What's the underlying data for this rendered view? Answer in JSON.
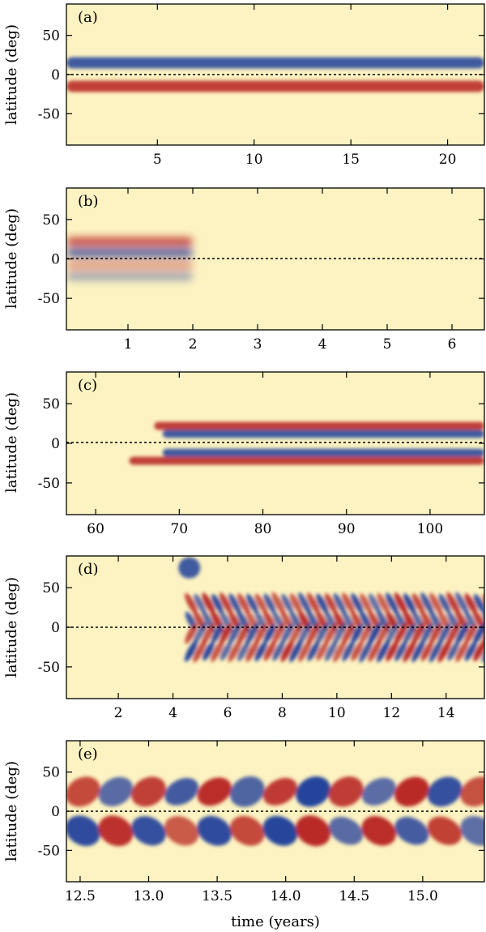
{
  "colors": {
    "background": "#fdf3c2",
    "positive": "#b5201c",
    "negative": "#1f3e9a",
    "axis": "#000000"
  },
  "chart_data": [
    {
      "type": "heatmap",
      "panel_label": "(a)",
      "ylabel": "latitude (deg)",
      "xlabel": "",
      "xlim": [
        0.3,
        21.9
      ],
      "ylim": [
        -90,
        90
      ],
      "xticks": [
        5,
        10,
        15,
        20
      ],
      "yticks": [
        50,
        0,
        -50
      ],
      "equator_line": true,
      "features": [
        {
          "lat": 15,
          "polarity": "negative",
          "width": 10,
          "t_start": 0.3,
          "t_end": 21.9,
          "description": "persistent band"
        },
        {
          "lat": -15,
          "polarity": "positive",
          "width": 10,
          "t_start": 0.3,
          "t_end": 21.9,
          "description": "persistent band"
        }
      ]
    },
    {
      "type": "heatmap",
      "panel_label": "(b)",
      "ylabel": "latitude (deg)",
      "xlabel": "",
      "xlim": [
        0.05,
        6.5
      ],
      "ylim": [
        -90,
        90
      ],
      "xticks": [
        1,
        2,
        3,
        4,
        5,
        6
      ],
      "yticks": [
        50,
        0,
        -50
      ],
      "equator_line": true,
      "features": [
        {
          "lat": 22,
          "polarity": "positive",
          "t_start": 0.05,
          "t_end": 2.0
        },
        {
          "lat": 8,
          "polarity": "negative",
          "t_start": 0.05,
          "t_end": 2.0
        },
        {
          "lat": -8,
          "polarity": "positive",
          "t_start": 0.05,
          "t_end": 2.0
        },
        {
          "lat": -22,
          "polarity": "negative",
          "t_start": 0.05,
          "t_end": 2.0
        }
      ]
    },
    {
      "type": "heatmap",
      "panel_label": "(c)",
      "ylabel": "latitude (deg)",
      "xlabel": "",
      "xlim": [
        56.5,
        106.5
      ],
      "ylim": [
        -90,
        90
      ],
      "xticks": [
        60,
        70,
        80,
        90,
        100
      ],
      "yticks": [
        50,
        0,
        -50
      ],
      "equator_line": true,
      "features": [
        {
          "lat": 22,
          "polarity": "positive",
          "t_start": 67,
          "t_end": 106.5
        },
        {
          "lat": 12,
          "polarity": "negative",
          "t_start": 68,
          "t_end": 106.5
        },
        {
          "lat": -12,
          "polarity": "negative",
          "t_start": 68,
          "t_end": 106.5
        },
        {
          "lat": -22,
          "polarity": "positive",
          "t_start": 64,
          "t_end": 106.5
        }
      ]
    },
    {
      "type": "heatmap",
      "panel_label": "(d)",
      "ylabel": "latitude (deg)",
      "xlabel": "",
      "xlim": [
        0.1,
        15.4
      ],
      "ylim": [
        -90,
        90
      ],
      "xticks": [
        2,
        4,
        6,
        8,
        10,
        12,
        14
      ],
      "yticks": [
        50,
        0,
        -50
      ],
      "equator_line": true,
      "features": [
        {
          "lat": 30,
          "polarity": "alternating",
          "period": 0.32,
          "t_start": 4.5,
          "t_end": 15.4
        },
        {
          "lat": -30,
          "polarity": "alternating",
          "period": 0.32,
          "t_start": 4.5,
          "t_end": 15.4
        },
        {
          "lat": 75,
          "polarity": "negative",
          "t_start": 4.2,
          "t_end": 5.0
        }
      ]
    },
    {
      "type": "heatmap",
      "panel_label": "(e)",
      "ylabel": "latitude (deg)",
      "xlabel": "time (years)",
      "xlim": [
        12.4,
        15.45
      ],
      "ylim": [
        -90,
        90
      ],
      "xticks": [
        12.5,
        13.0,
        13.5,
        14.0,
        14.5,
        15.0
      ],
      "yticks": [
        50,
        0,
        -50
      ],
      "equator_line": true,
      "features": [
        {
          "lat": 25,
          "polarity": "alternating",
          "period": 0.24,
          "t_start": 12.4,
          "t_end": 15.45
        },
        {
          "lat": -25,
          "polarity": "alternating",
          "period": 0.24,
          "t_start": 12.4,
          "t_end": 15.45
        }
      ]
    }
  ]
}
